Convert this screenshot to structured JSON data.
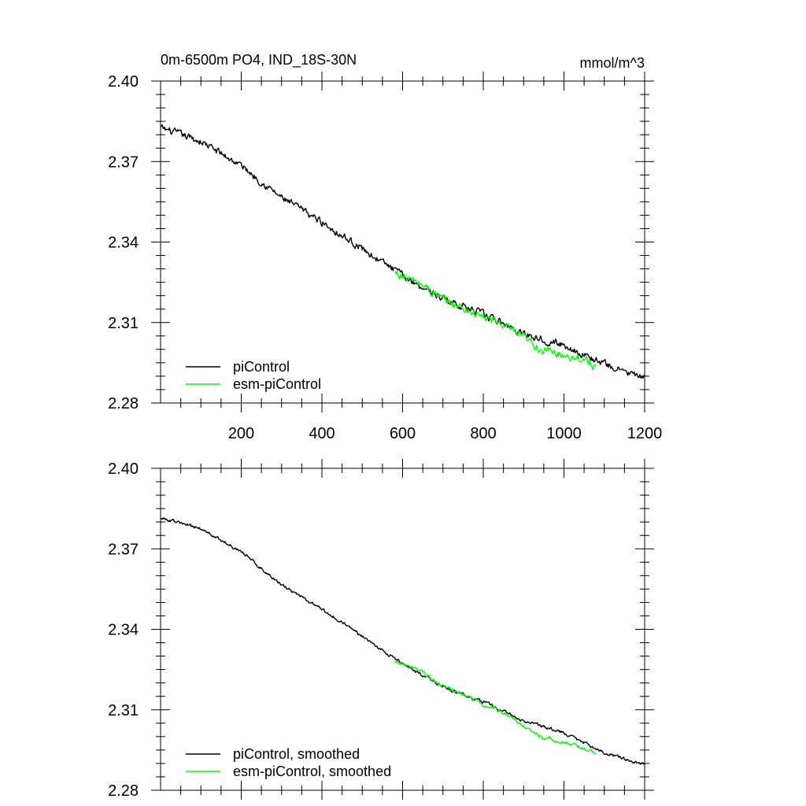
{
  "figure": {
    "title_left": "0m-6500m PO4, IND_18S-30N",
    "title_right": "mmol/m^3"
  },
  "chart_data": [
    {
      "type": "line",
      "title": "0m-6500m PO4, IND_18S-30N",
      "units": "mmol/m^3",
      "xlim": [
        0,
        1200
      ],
      "ylim": [
        2.28,
        2.4
      ],
      "xticks": [
        200,
        400,
        600,
        800,
        1000,
        1200
      ],
      "xtick_labels": [
        "200",
        "400",
        "600",
        "800",
        "1000",
        "1200"
      ],
      "yticks": [
        2.28,
        2.31,
        2.34,
        2.37,
        2.4
      ],
      "ytick_labels": [
        "2.28",
        "2.31",
        "2.34",
        "2.37",
        "2.40"
      ],
      "legend_position": "bottom-left",
      "series": [
        {
          "name": "piControl",
          "color": "#000000",
          "noise": 0.0011,
          "anchors": [
            [
              0,
              2.3825
            ],
            [
              100,
              2.3775
            ],
            [
              200,
              2.3685
            ],
            [
              300,
              2.3565
            ],
            [
              400,
              2.3475
            ],
            [
              500,
              2.3375
            ],
            [
              600,
              2.3275
            ],
            [
              700,
              2.319
            ],
            [
              800,
              2.313
            ],
            [
              900,
              2.306
            ],
            [
              1000,
              2.3015
            ],
            [
              1100,
              2.2945
            ],
            [
              1200,
              2.289
            ]
          ]
        },
        {
          "name": "esm-piControl",
          "color": "#00ff00",
          "noise": 0.0013,
          "anchors": [
            [
              580,
              2.3285
            ],
            [
              650,
              2.324
            ],
            [
              700,
              2.3185
            ],
            [
              800,
              2.312
            ],
            [
              850,
              2.309
            ],
            [
              900,
              2.304
            ],
            [
              950,
              2.2995
            ],
            [
              1000,
              2.298
            ],
            [
              1050,
              2.2965
            ],
            [
              1080,
              2.2935
            ]
          ]
        }
      ]
    },
    {
      "type": "line",
      "xlim": [
        0,
        1200
      ],
      "ylim": [
        2.28,
        2.4
      ],
      "xticks": [
        200,
        400,
        600,
        800,
        1000,
        1200
      ],
      "yticks": [
        2.28,
        2.31,
        2.34,
        2.37,
        2.4
      ],
      "ytick_labels": [
        "2.28",
        "2.31",
        "2.34",
        "2.37",
        "2.40"
      ],
      "legend_position": "bottom-left",
      "series": [
        {
          "name": "piControl, smoothed",
          "color": "#000000",
          "noise": 0.0005,
          "anchors": [
            [
              0,
              2.3815
            ],
            [
              100,
              2.3775
            ],
            [
              200,
              2.369
            ],
            [
              300,
              2.3565
            ],
            [
              400,
              2.3475
            ],
            [
              500,
              2.3375
            ],
            [
              600,
              2.327
            ],
            [
              700,
              2.3185
            ],
            [
              800,
              2.313
            ],
            [
              900,
              2.306
            ],
            [
              1000,
              2.3015
            ],
            [
              1100,
              2.294
            ],
            [
              1200,
              2.2895
            ]
          ]
        },
        {
          "name": "esm-piControl, smoothed",
          "color": "#00ff00",
          "noise": 0.0006,
          "anchors": [
            [
              580,
              2.3285
            ],
            [
              650,
              2.324
            ],
            [
              700,
              2.319
            ],
            [
              800,
              2.312
            ],
            [
              850,
              2.309
            ],
            [
              900,
              2.304
            ],
            [
              950,
              2.2995
            ],
            [
              1000,
              2.298
            ],
            [
              1050,
              2.2955
            ],
            [
              1080,
              2.2935
            ]
          ]
        }
      ]
    }
  ]
}
